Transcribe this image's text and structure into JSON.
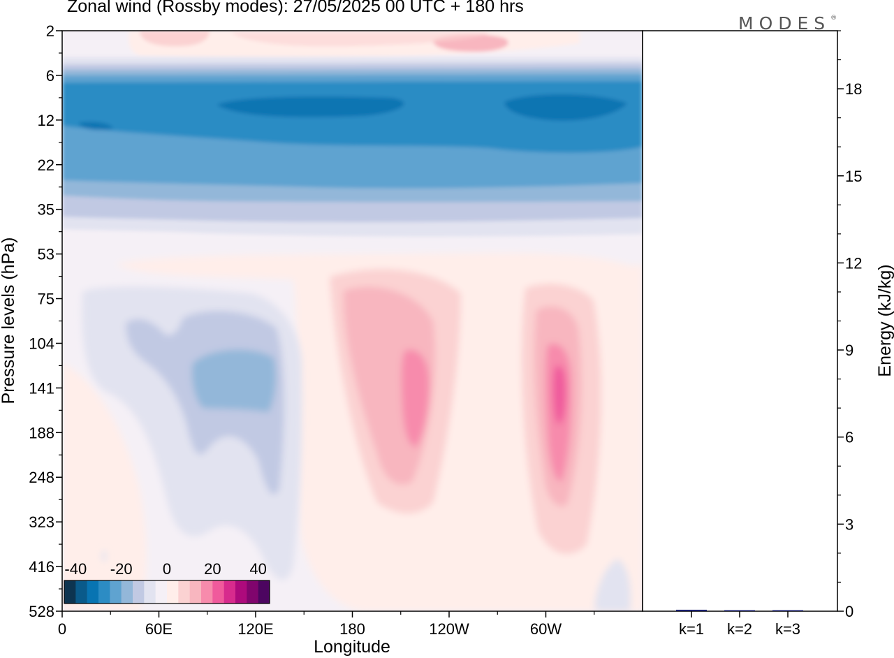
{
  "title": "Zonal wind (Rossby modes):  27/05/2025  00 UTC  + 180 hrs",
  "logo": {
    "text": "MODES",
    "mark": "®"
  },
  "chart_data": [
    {
      "type": "heatmap",
      "variable": "Zonal wind",
      "xlabel": "Longitude",
      "ylabel": "Pressure levels (hPa)",
      "x_ticks": [
        "0",
        "60E",
        "120E",
        "180",
        "120W",
        "60W"
      ],
      "y_ticks": [
        "2",
        "6",
        "12",
        "22",
        "35",
        "53",
        "75",
        "104",
        "141",
        "188",
        "248",
        "323",
        "416",
        "528"
      ],
      "y_scale": "log",
      "colorbar": {
        "labels": [
          "-40",
          "-20",
          "0",
          "20",
          "40"
        ],
        "range": [
          -45,
          45
        ],
        "step": 5,
        "colors": [
          "#0d3450",
          "#0a5a8a",
          "#0874b2",
          "#2c8cc4",
          "#5fa3d0",
          "#93b7d9",
          "#c1c9e3",
          "#e2e3f0",
          "#f5f0f6",
          "#ffeeea",
          "#fbd2d2",
          "#f8b6bf",
          "#f78bac",
          "#f05a9c",
          "#d72b8d",
          "#ad0a7c",
          "#80056d",
          "#4c0560"
        ]
      },
      "features": [
        {
          "name": "stratospheric easterly jet",
          "lon_range": [
            0,
            360
          ],
          "p_range": [
            6,
            35
          ],
          "peak_value": -35
        },
        {
          "name": "easterly anomaly",
          "lon_range": [
            15,
            150
          ],
          "p_range": [
            75,
            416
          ],
          "peak_value": -15
        },
        {
          "name": "westerly maximum",
          "lon_center": 220,
          "p_center": 141,
          "peak_value": 20
        },
        {
          "name": "westerly maximum",
          "lon_center": 297,
          "p_center": 141,
          "peak_value": 25
        },
        {
          "name": "weak westerlies",
          "lon_range": [
            40,
            320
          ],
          "p_range": [
            2,
            6
          ],
          "peak_value": 10
        }
      ]
    },
    {
      "type": "bar",
      "categories": [
        "k=1",
        "k=2",
        "k=3"
      ],
      "values": [
        0.05,
        0.03,
        0.03
      ],
      "ylabel": "Energy (kJ/kg)",
      "y_ticks": [
        "0",
        "3",
        "6",
        "9",
        "12",
        "15",
        "18"
      ],
      "ylim": [
        0,
        20
      ],
      "bar_color": "#1a1f6e"
    }
  ]
}
